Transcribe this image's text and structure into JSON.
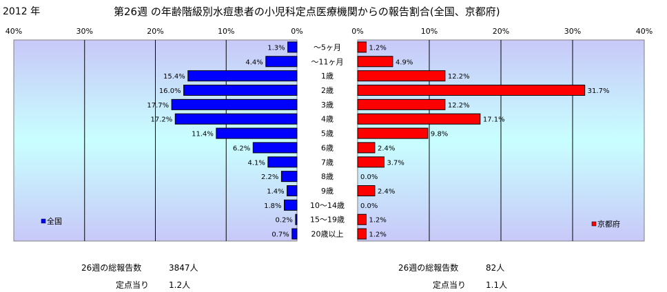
{
  "header": {
    "year": "2012 年",
    "title": "第26週 の年齢階級別水痘患者の小児科定点医療機関からの報告割合(全国、京都府)"
  },
  "chart_data": {
    "type": "bar",
    "orientation": "horizontal-back-to-back",
    "categories": [
      "～5ヶ月",
      "～11ヶ月",
      "1歳",
      "2歳",
      "3歳",
      "4歳",
      "5歳",
      "6歳",
      "7歳",
      "8歳",
      "9歳",
      "10～14歳",
      "15～19歳",
      "20歳以上"
    ],
    "series": [
      {
        "name": "全国",
        "side": "left",
        "color": "#0000ff",
        "values": [
          1.3,
          4.4,
          15.4,
          16.0,
          17.7,
          17.2,
          11.4,
          6.2,
          4.1,
          2.2,
          1.4,
          1.8,
          0.2,
          0.7
        ]
      },
      {
        "name": "京都府",
        "side": "right",
        "color": "#ff0000",
        "values": [
          1.2,
          4.9,
          12.2,
          31.7,
          12.2,
          17.1,
          9.8,
          2.4,
          3.7,
          0.0,
          2.4,
          0.0,
          1.2,
          1.2
        ]
      }
    ],
    "xlim": [
      0,
      40
    ],
    "ticks": [
      "0%",
      "10%",
      "20%",
      "30%",
      "40%"
    ],
    "value_suffix": "%",
    "grid": true,
    "legend_position": "bottom-inside"
  },
  "footer": {
    "national": {
      "total_label": "26週の総報告数",
      "total_value": "3847人",
      "per_label": "定点当り",
      "per_value": "1.2人"
    },
    "kyoto": {
      "total_label": "26週の総報告数",
      "total_value": "82人",
      "per_label": "定点当り",
      "per_value": "1.1人"
    }
  }
}
